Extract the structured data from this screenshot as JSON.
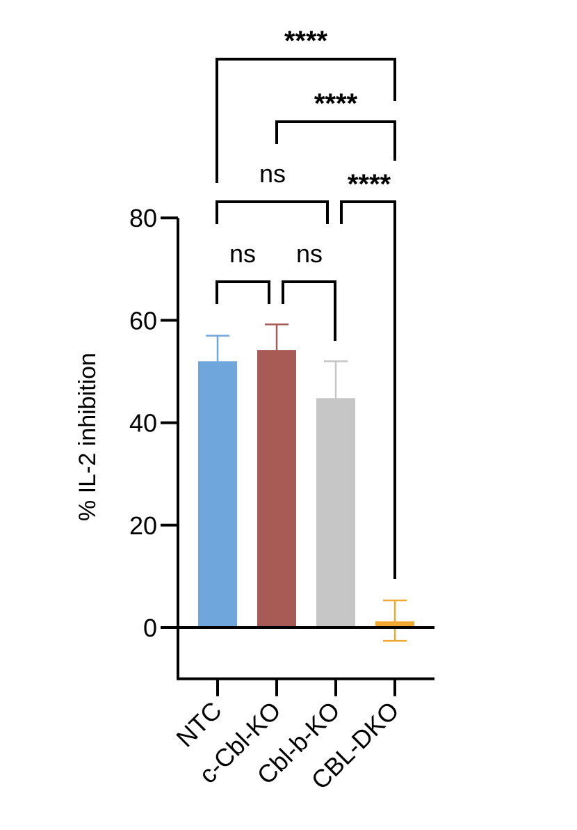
{
  "chart_data": {
    "type": "bar",
    "title": "",
    "ylabel": "% IL-2 inhibition",
    "xlabel": "",
    "categories": [
      "NTC",
      "c-Cbl-KO",
      "Cbl-b-KO",
      "CBL-DKO"
    ],
    "values": [
      52,
      54.2,
      44.8,
      1.2
    ],
    "error_up": [
      5,
      5,
      7.2,
      4.1
    ],
    "error_down": [
      0,
      0,
      0,
      3.8
    ],
    "colors": [
      "#6fa6dc",
      "#a85a55",
      "#c6c6c6",
      "#f0a830"
    ],
    "ylim": [
      -10,
      80
    ],
    "yticks": [
      0,
      20,
      40,
      60,
      80
    ],
    "yticks_labels": [
      "0",
      "20",
      "40",
      "60",
      "80"
    ],
    "grid": false,
    "comparisons": [
      {
        "groups": [
          "NTC",
          "c-Cbl-KO"
        ],
        "label": "ns"
      },
      {
        "groups": [
          "c-Cbl-KO",
          "Cbl-b-KO"
        ],
        "label": "ns"
      },
      {
        "groups": [
          "NTC",
          "Cbl-b-KO"
        ],
        "label": "ns"
      },
      {
        "groups": [
          "Cbl-b-KO",
          "CBL-DKO"
        ],
        "label": "****"
      },
      {
        "groups": [
          "c-Cbl-KO",
          "CBL-DKO"
        ],
        "label": "****"
      },
      {
        "groups": [
          "NTC",
          "CBL-DKO"
        ],
        "label": "****"
      }
    ]
  }
}
